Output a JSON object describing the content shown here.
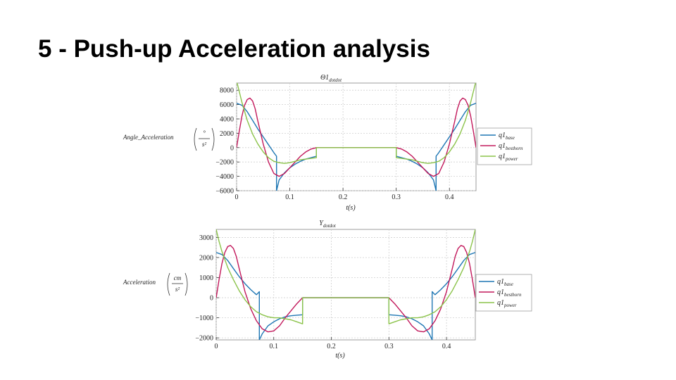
{
  "slide": {
    "title": "5 - Push-up Acceleration analysis"
  },
  "colors": {
    "base": "#1f77b4",
    "besthorn": "#c2185b",
    "power": "#8bc34a"
  },
  "chart_data": [
    {
      "type": "line",
      "title": "Θ1",
      "title_sub": "dotdot",
      "xlabel": "t(s)",
      "ylabel": "Angle_Acceleration",
      "ylabel_unit_num": "°",
      "ylabel_unit_den": "s²",
      "xlim": [
        0,
        0.45
      ],
      "ylim": [
        -6000,
        9000
      ],
      "xticks": [
        0,
        0.1,
        0.2,
        0.3,
        0.4
      ],
      "xtick_labels": [
        "0",
        "0.1",
        "0.2",
        "0.3",
        "0.4"
      ],
      "yticks": [
        8000,
        6000,
        4000,
        2000,
        0,
        -2000,
        -4000,
        -6000
      ],
      "ytick_labels": [
        "8000",
        "6000",
        "4000",
        "2000",
        "0",
        "−2000",
        "−4000",
        "−6000"
      ],
      "grid": true,
      "legend_position": "right",
      "series": [
        {
          "name": "q1",
          "sub": "base",
          "color_key": "base",
          "x": [
            0,
            0.01,
            0.02,
            0.03,
            0.04,
            0.05,
            0.06,
            0.07,
            0.075,
            0.075,
            0.08,
            0.09,
            0.1,
            0.11,
            0.12,
            0.13,
            0.14,
            0.15,
            0.15,
            0.3,
            0.3,
            0.31,
            0.32,
            0.33,
            0.34,
            0.35,
            0.36,
            0.37,
            0.375,
            0.375,
            0.38,
            0.39,
            0.4,
            0.41,
            0.42,
            0.43,
            0.44,
            0.45
          ],
          "y": [
            6200,
            5900,
            5000,
            3800,
            2600,
            1500,
            400,
            -700,
            -1200,
            -6000,
            -4500,
            -3500,
            -2800,
            -2300,
            -1900,
            -1600,
            -1400,
            -1200,
            0,
            0,
            -1200,
            -1400,
            -1600,
            -1900,
            -2300,
            -2800,
            -3500,
            -4500,
            -6000,
            -1200,
            -700,
            400,
            1500,
            2600,
            3800,
            5000,
            5900,
            6200
          ]
        },
        {
          "name": "q1",
          "sub": "besthorn",
          "color_key": "besthorn",
          "x": [
            0,
            0.005,
            0.01,
            0.015,
            0.02,
            0.025,
            0.03,
            0.035,
            0.04,
            0.05,
            0.06,
            0.07,
            0.08,
            0.09,
            0.1,
            0.11,
            0.12,
            0.13,
            0.14,
            0.15,
            0.3,
            0.31,
            0.32,
            0.33,
            0.34,
            0.35,
            0.36,
            0.37,
            0.38,
            0.39,
            0.4,
            0.41,
            0.415,
            0.42,
            0.425,
            0.43,
            0.435,
            0.44,
            0.445,
            0.45
          ],
          "y": [
            0,
            2300,
            4400,
            5900,
            6700,
            6900,
            6500,
            5400,
            3700,
            500,
            -2000,
            -3600,
            -4000,
            -3600,
            -2800,
            -2000,
            -1200,
            -600,
            -200,
            0,
            0,
            -200,
            -600,
            -1200,
            -2000,
            -2800,
            -3600,
            -4000,
            -3600,
            -2000,
            500,
            3700,
            5400,
            6500,
            6900,
            6700,
            5900,
            4400,
            2300,
            0
          ]
        },
        {
          "name": "q1",
          "sub": "power",
          "color_key": "power",
          "x": [
            0,
            0.005,
            0.01,
            0.02,
            0.03,
            0.04,
            0.05,
            0.06,
            0.07,
            0.08,
            0.09,
            0.1,
            0.11,
            0.12,
            0.13,
            0.14,
            0.15,
            0.15,
            0.3,
            0.3,
            0.31,
            0.32,
            0.33,
            0.34,
            0.35,
            0.36,
            0.37,
            0.38,
            0.39,
            0.4,
            0.41,
            0.42,
            0.43,
            0.44,
            0.445,
            0.45
          ],
          "y": [
            9300,
            7800,
            6300,
            3800,
            1900,
            500,
            -600,
            -1400,
            -1900,
            -2100,
            -2200,
            -2100,
            -1900,
            -1700,
            -1600,
            -1500,
            -1400,
            0,
            0,
            -1400,
            -1500,
            -1600,
            -1700,
            -1900,
            -2100,
            -2200,
            -2100,
            -1900,
            -1400,
            -600,
            500,
            1900,
            3800,
            6300,
            7800,
            9300
          ]
        }
      ]
    },
    {
      "type": "line",
      "title": "Y",
      "title_sub": "dotdot",
      "xlabel": "t(s)",
      "ylabel": "Acceleration",
      "ylabel_unit_num": "cm",
      "ylabel_unit_den": "s²",
      "xlim": [
        0,
        0.45
      ],
      "ylim": [
        -2100,
        3400
      ],
      "xticks": [
        0,
        0.1,
        0.2,
        0.3,
        0.4
      ],
      "xtick_labels": [
        "0",
        "0.1",
        "0.2",
        "0.3",
        "0.4"
      ],
      "yticks": [
        3000,
        2000,
        1000,
        0,
        -1000,
        -2000
      ],
      "ytick_labels": [
        "3000",
        "2000",
        "1000",
        "0",
        "−1000",
        "−2000"
      ],
      "grid": true,
      "legend_position": "right",
      "series": [
        {
          "name": "q1",
          "sub": "base",
          "color_key": "base",
          "x": [
            0,
            0.01,
            0.02,
            0.03,
            0.04,
            0.05,
            0.06,
            0.07,
            0.075,
            0.075,
            0.08,
            0.09,
            0.1,
            0.11,
            0.12,
            0.13,
            0.14,
            0.15,
            0.15,
            0.3,
            0.3,
            0.31,
            0.32,
            0.33,
            0.34,
            0.35,
            0.36,
            0.37,
            0.375,
            0.375,
            0.38,
            0.39,
            0.4,
            0.41,
            0.42,
            0.43,
            0.44,
            0.45
          ],
          "y": [
            2250,
            2150,
            1850,
            1450,
            1050,
            700,
            400,
            150,
            300,
            -2100,
            -1800,
            -1400,
            -1200,
            -1050,
            -950,
            -900,
            -870,
            -850,
            0,
            0,
            -850,
            -870,
            -900,
            -950,
            -1050,
            -1200,
            -1400,
            -1800,
            -2100,
            300,
            150,
            400,
            700,
            1050,
            1450,
            1850,
            2150,
            2250
          ]
        },
        {
          "name": "q1",
          "sub": "besthorn",
          "color_key": "besthorn",
          "x": [
            0,
            0.005,
            0.01,
            0.015,
            0.02,
            0.025,
            0.03,
            0.035,
            0.04,
            0.05,
            0.06,
            0.07,
            0.08,
            0.09,
            0.1,
            0.11,
            0.12,
            0.13,
            0.14,
            0.15,
            0.3,
            0.31,
            0.32,
            0.33,
            0.34,
            0.35,
            0.36,
            0.37,
            0.38,
            0.39,
            0.4,
            0.41,
            0.415,
            0.42,
            0.425,
            0.43,
            0.435,
            0.44,
            0.445,
            0.45
          ],
          "y": [
            0,
            900,
            1700,
            2250,
            2550,
            2600,
            2450,
            2050,
            1450,
            300,
            -550,
            -1150,
            -1550,
            -1700,
            -1650,
            -1400,
            -1000,
            -650,
            -300,
            0,
            0,
            -300,
            -650,
            -1000,
            -1400,
            -1650,
            -1700,
            -1550,
            -1150,
            -550,
            300,
            1450,
            2050,
            2450,
            2600,
            2550,
            2250,
            1700,
            900,
            0
          ]
        },
        {
          "name": "q1",
          "sub": "power",
          "color_key": "power",
          "x": [
            0,
            0.005,
            0.01,
            0.02,
            0.03,
            0.04,
            0.05,
            0.06,
            0.07,
            0.08,
            0.09,
            0.1,
            0.11,
            0.12,
            0.13,
            0.14,
            0.15,
            0.15,
            0.3,
            0.3,
            0.31,
            0.32,
            0.33,
            0.34,
            0.35,
            0.36,
            0.37,
            0.38,
            0.39,
            0.4,
            0.41,
            0.42,
            0.43,
            0.44,
            0.445,
            0.45
          ],
          "y": [
            3400,
            2800,
            2300,
            1500,
            900,
            350,
            -100,
            -450,
            -700,
            -850,
            -950,
            -1000,
            -1000,
            -1050,
            -1100,
            -1200,
            -1300,
            0,
            0,
            -1300,
            -1200,
            -1100,
            -1050,
            -1000,
            -1000,
            -950,
            -850,
            -700,
            -450,
            -100,
            350,
            900,
            1500,
            2300,
            2800,
            3400
          ]
        }
      ]
    }
  ]
}
